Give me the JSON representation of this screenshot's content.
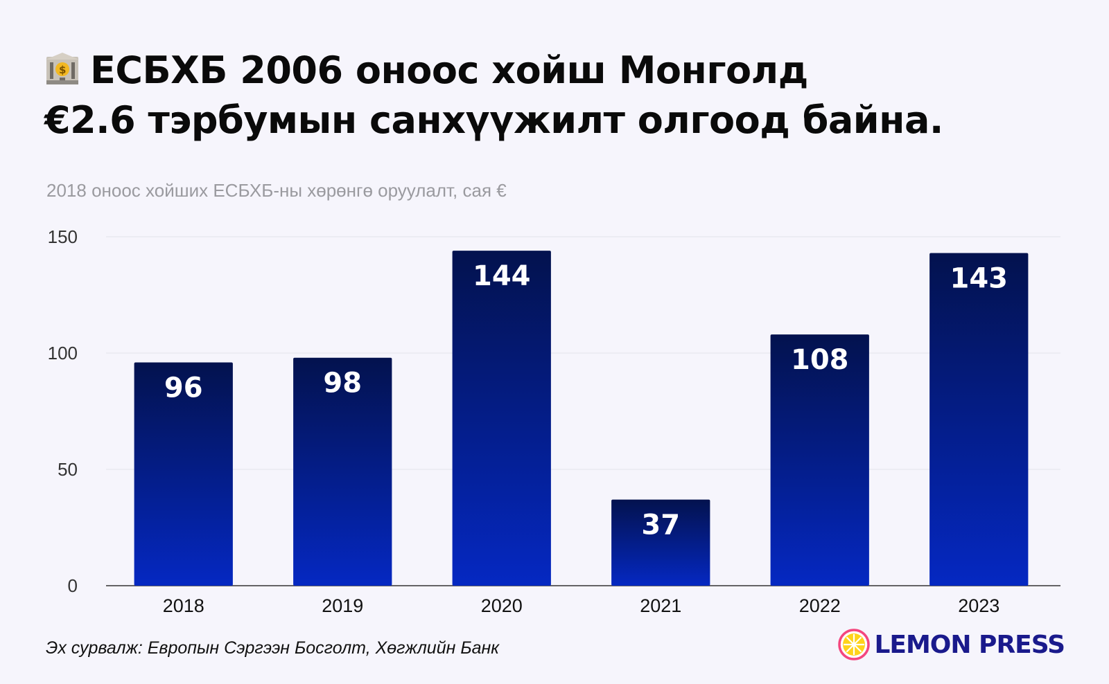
{
  "header": {
    "title_line1": "ЕСБХБ 2006 оноос хойш Монголд",
    "title_line2": "€2.6 тэрбумын санхүүжилт олгоод байна.",
    "title_icon": "bank-icon",
    "subtitle": "2018 оноос хойших ЕСБХБ-ны хөрөнгө оруулалт, сая €"
  },
  "chart_data": {
    "type": "bar",
    "categories": [
      "2018",
      "2019",
      "2020",
      "2021",
      "2022",
      "2023"
    ],
    "values": [
      96,
      98,
      144,
      37,
      108,
      143
    ],
    "data_labels": [
      "96",
      "98",
      "144",
      "37",
      "108",
      "143"
    ],
    "title": "2018 оноос хойших ЕСБХБ-ны хөрөнгө оруулалт, сая €",
    "xlabel": "",
    "ylabel": "",
    "ylim": [
      0,
      150
    ],
    "yticks": [
      0,
      50,
      100,
      150
    ],
    "grid": true,
    "legend": "none",
    "colors": {
      "bar_top": "#03124e",
      "bar_bottom": "#0528c2",
      "label": "#ffffff",
      "grid": "#e2e2ea",
      "axis": "#333333"
    }
  },
  "footer": {
    "source": "Эх сурвалж: Европын Сэргээн Босголт, Хөгжлийн Банк",
    "brand": "LEMON PRESS",
    "brand_icon": "lemon-logo-icon",
    "brand_color": "#1a1a8c"
  }
}
